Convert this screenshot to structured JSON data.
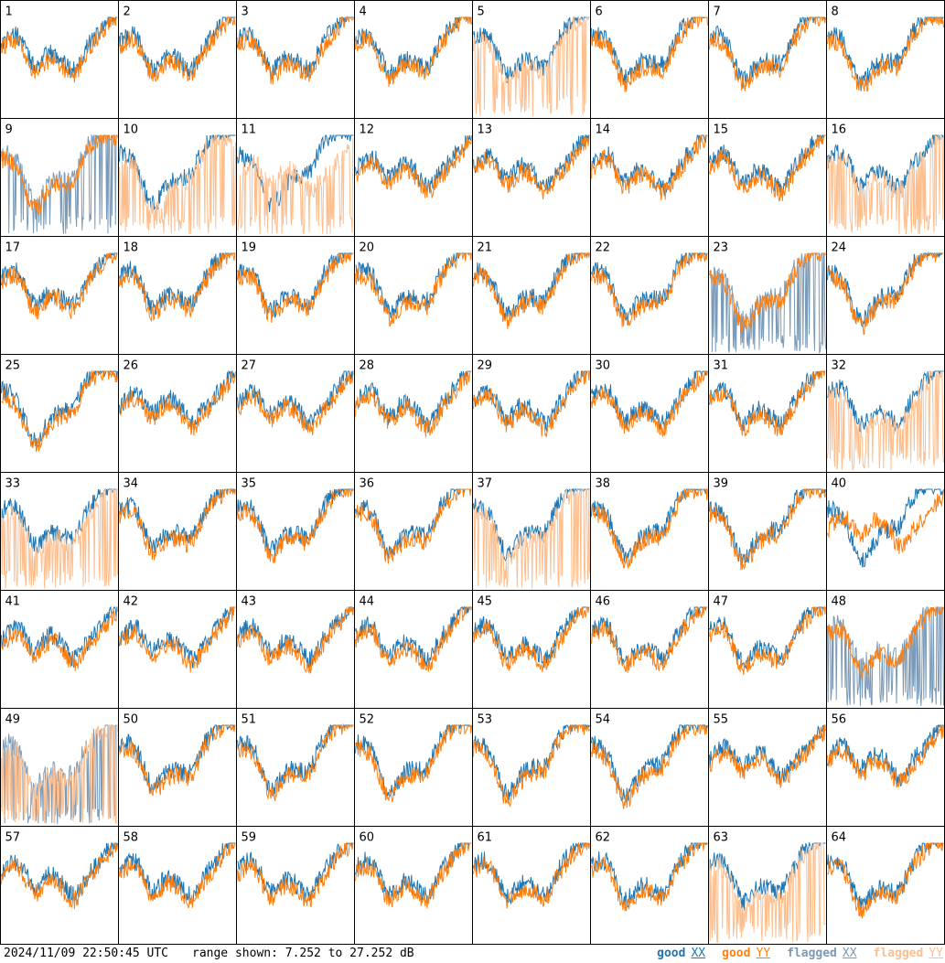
{
  "footer": {
    "timestamp": "2024/11/09 22:50:45 UTC",
    "range": "range shown: 7.252 to 27.252 dB"
  },
  "legend": [
    {
      "word": "good",
      "pol": "XX",
      "color": "#1f77b4"
    },
    {
      "word": "good",
      "pol": "YY",
      "color": "#ff7f0e"
    },
    {
      "word": "flagged",
      "pol": "XX",
      "color": "#7a9ab8"
    },
    {
      "word": "flagged",
      "pol": "YY",
      "color": "#ffbe8c"
    }
  ],
  "colors": {
    "good_xx": "#1f77b4",
    "good_yy": "#ff7f0e",
    "flagged_xx": "#7a9ab8",
    "flagged_yy": "#ffbe8c"
  },
  "chart_data": {
    "type": "line",
    "grid": "8x8 small multiples, one panel per tile",
    "ylim": [
      7.252,
      27.252
    ],
    "yunit": "dB",
    "panels": [
      {
        "tile": "1",
        "xx": "good",
        "yy": "good"
      },
      {
        "tile": "2",
        "xx": "good",
        "yy": "good"
      },
      {
        "tile": "3",
        "xx": "good",
        "yy": "good"
      },
      {
        "tile": "4",
        "xx": "good",
        "yy": "good"
      },
      {
        "tile": "5",
        "xx": "good",
        "yy": "flagged"
      },
      {
        "tile": "6",
        "xx": "good",
        "yy": "good"
      },
      {
        "tile": "7",
        "xx": "good",
        "yy": "good"
      },
      {
        "tile": "8",
        "xx": "good",
        "yy": "good"
      },
      {
        "tile": "9",
        "xx": "flagged",
        "yy": "good"
      },
      {
        "tile": "10",
        "xx": "good",
        "yy": "flagged"
      },
      {
        "tile": "11",
        "xx": "good",
        "yy": "flagged"
      },
      {
        "tile": "12",
        "xx": "good",
        "yy": "good"
      },
      {
        "tile": "13",
        "xx": "good",
        "yy": "good"
      },
      {
        "tile": "14",
        "xx": "good",
        "yy": "good"
      },
      {
        "tile": "15",
        "xx": "good",
        "yy": "good"
      },
      {
        "tile": "16",
        "xx": "good",
        "yy": "flagged"
      },
      {
        "tile": "17",
        "xx": "good",
        "yy": "good"
      },
      {
        "tile": "18",
        "xx": "good",
        "yy": "good"
      },
      {
        "tile": "19",
        "xx": "good",
        "yy": "good"
      },
      {
        "tile": "20",
        "xx": "good",
        "yy": "good"
      },
      {
        "tile": "21",
        "xx": "good",
        "yy": "good"
      },
      {
        "tile": "22",
        "xx": "good",
        "yy": "good"
      },
      {
        "tile": "23",
        "xx": "flagged",
        "yy": "good"
      },
      {
        "tile": "24",
        "xx": "good",
        "yy": "good"
      },
      {
        "tile": "25",
        "xx": "good",
        "yy": "good"
      },
      {
        "tile": "26",
        "xx": "good",
        "yy": "good"
      },
      {
        "tile": "27",
        "xx": "good",
        "yy": "good"
      },
      {
        "tile": "28",
        "xx": "good",
        "yy": "good"
      },
      {
        "tile": "29",
        "xx": "good",
        "yy": "good"
      },
      {
        "tile": "30",
        "xx": "good",
        "yy": "good"
      },
      {
        "tile": "31",
        "xx": "good",
        "yy": "good"
      },
      {
        "tile": "32",
        "xx": "good",
        "yy": "flagged"
      },
      {
        "tile": "33",
        "xx": "good",
        "yy": "flagged"
      },
      {
        "tile": "34",
        "xx": "good",
        "yy": "good"
      },
      {
        "tile": "35",
        "xx": "good",
        "yy": "good"
      },
      {
        "tile": "36",
        "xx": "good",
        "yy": "good"
      },
      {
        "tile": "37",
        "xx": "good",
        "yy": "flagged"
      },
      {
        "tile": "38",
        "xx": "good",
        "yy": "good"
      },
      {
        "tile": "39",
        "xx": "good",
        "yy": "good"
      },
      {
        "tile": "40",
        "xx": "good",
        "yy": "good"
      },
      {
        "tile": "41",
        "xx": "good",
        "yy": "good"
      },
      {
        "tile": "42",
        "xx": "good",
        "yy": "good"
      },
      {
        "tile": "43",
        "xx": "good",
        "yy": "good"
      },
      {
        "tile": "44",
        "xx": "good",
        "yy": "good"
      },
      {
        "tile": "45",
        "xx": "good",
        "yy": "good"
      },
      {
        "tile": "46",
        "xx": "good",
        "yy": "good"
      },
      {
        "tile": "47",
        "xx": "good",
        "yy": "good"
      },
      {
        "tile": "48",
        "xx": "flagged",
        "yy": "good"
      },
      {
        "tile": "49",
        "xx": "flagged",
        "yy": "flagged"
      },
      {
        "tile": "50",
        "xx": "good",
        "yy": "good"
      },
      {
        "tile": "51",
        "xx": "good",
        "yy": "good"
      },
      {
        "tile": "52",
        "xx": "good",
        "yy": "good"
      },
      {
        "tile": "53",
        "xx": "good",
        "yy": "good"
      },
      {
        "tile": "54",
        "xx": "good",
        "yy": "good"
      },
      {
        "tile": "55",
        "xx": "good",
        "yy": "good"
      },
      {
        "tile": "56",
        "xx": "good",
        "yy": "good"
      },
      {
        "tile": "57",
        "xx": "good",
        "yy": "good"
      },
      {
        "tile": "58",
        "xx": "good",
        "yy": "good"
      },
      {
        "tile": "59",
        "xx": "good",
        "yy": "good"
      },
      {
        "tile": "60",
        "xx": "good",
        "yy": "good"
      },
      {
        "tile": "61",
        "xx": "good",
        "yy": "good"
      },
      {
        "tile": "62",
        "xx": "good",
        "yy": "good"
      },
      {
        "tile": "63",
        "xx": "good",
        "yy": "flagged"
      },
      {
        "tile": "64",
        "xx": "good",
        "yy": "good"
      }
    ]
  }
}
